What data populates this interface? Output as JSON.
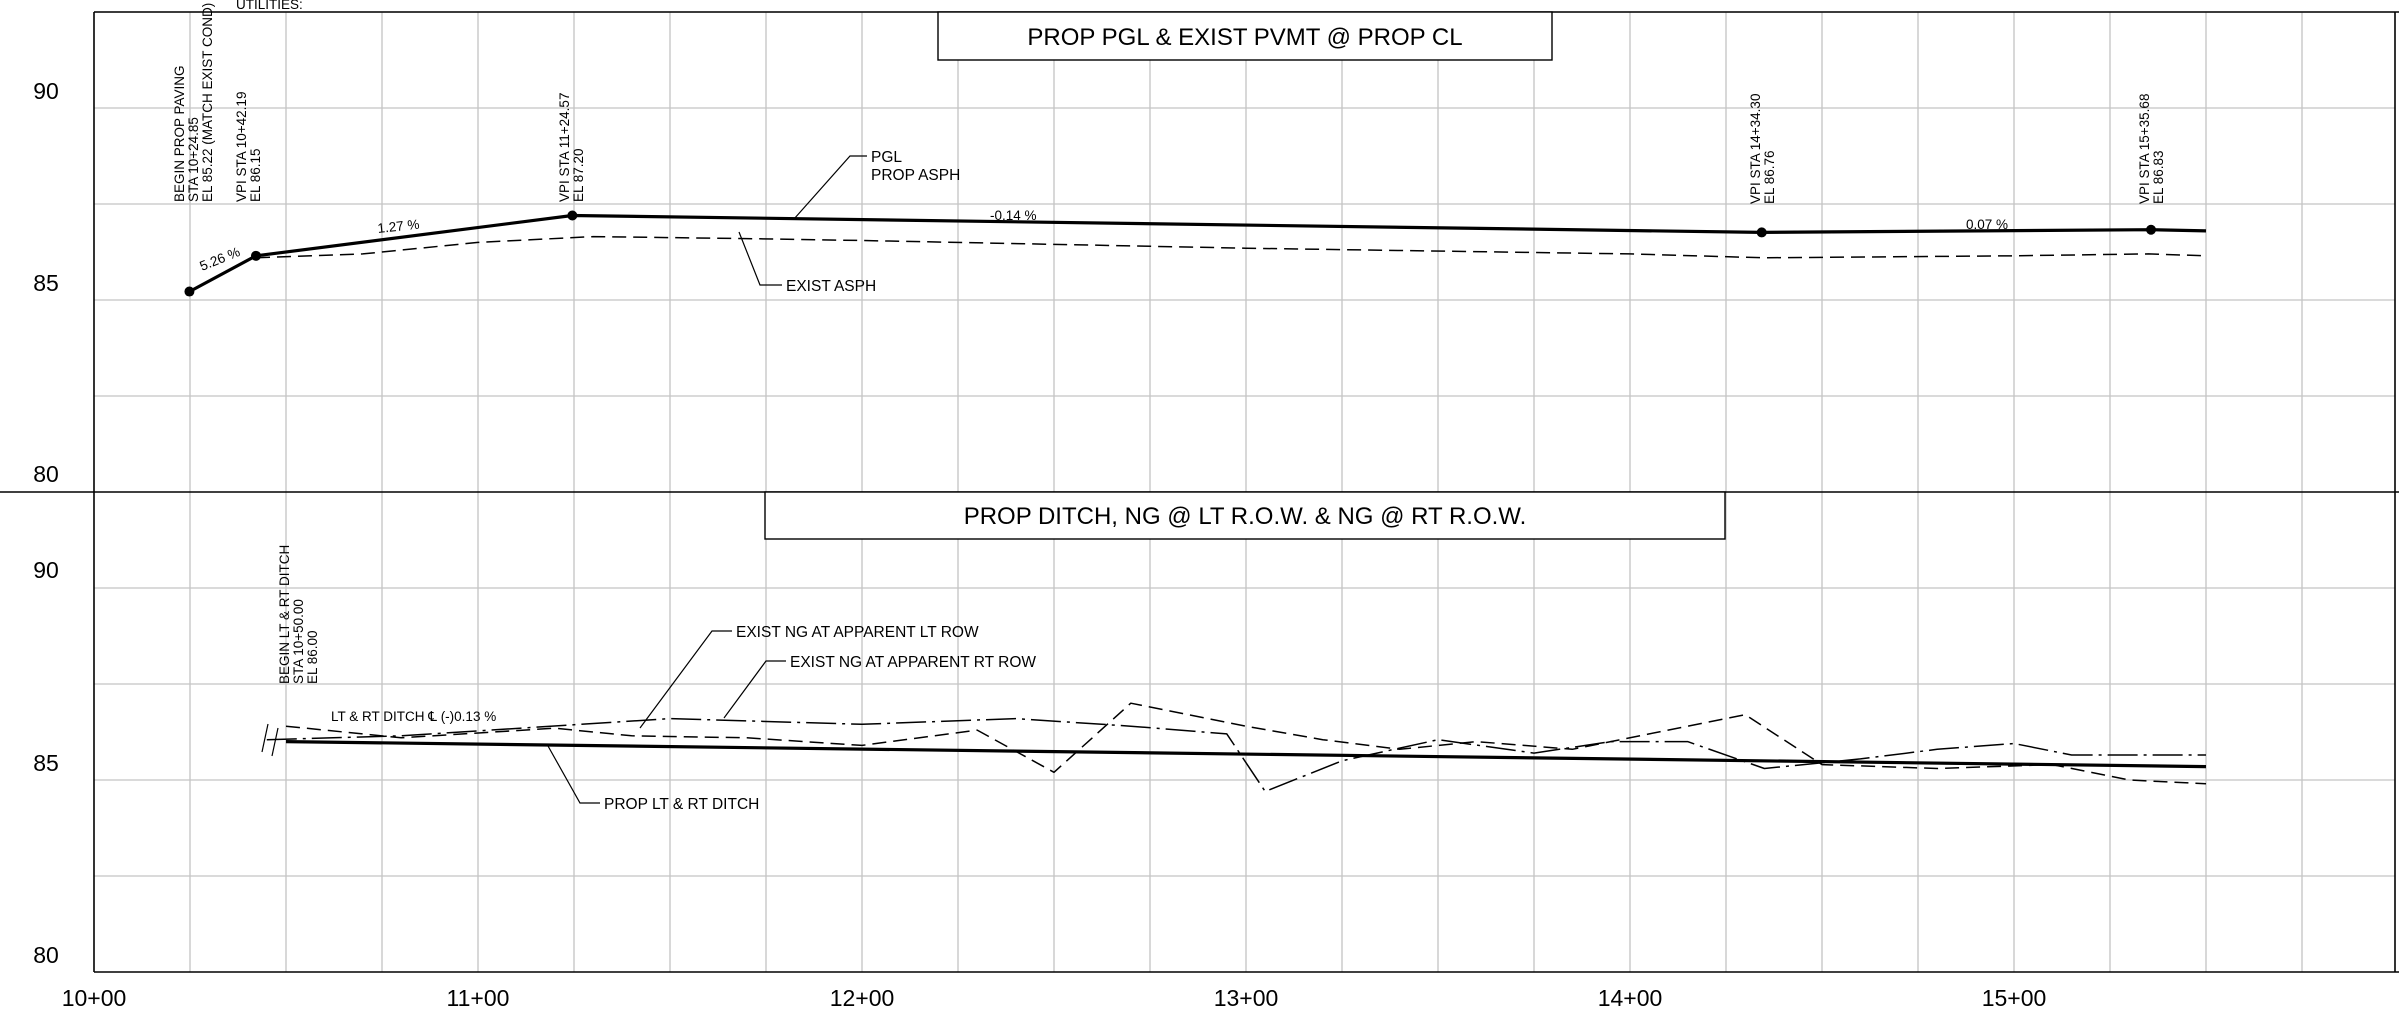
{
  "utility_note": "UTILITIES:",
  "x_axis": {
    "ticks": [
      "10+00",
      "11+00",
      "12+00",
      "13+00",
      "14+00",
      "15+00"
    ]
  },
  "top_panel": {
    "title": "PROP PGL & EXIST PVMT @ PROP CL",
    "y_ticks": [
      "90",
      "85",
      "80"
    ],
    "vpi_labels": [
      {
        "lines": [
          "BEGIN PROP PAVING",
          "STA 10+24.85",
          "EL 85.22 (MATCH EXIST COND)"
        ]
      },
      {
        "lines": [
          "VPI STA 10+42.19",
          "EL 86.15"
        ]
      },
      {
        "lines": [
          "VPI STA 11+24.57",
          "EL 87.20"
        ]
      },
      {
        "lines": [
          "VPI STA 14+34.30",
          "EL 86.76"
        ]
      },
      {
        "lines": [
          "VPI STA 15+35.68",
          "EL 86.83"
        ]
      }
    ],
    "grades": [
      "5.26 %",
      "1.27 %",
      "-0.14 %",
      "0.07 %"
    ],
    "callouts": {
      "pgl": [
        "PGL",
        "PROP ASPH"
      ],
      "exist": "EXIST ASPH"
    }
  },
  "bottom_panel": {
    "title": "PROP DITCH, NG @ LT R.O.W. & NG @ RT R.O.W.",
    "y_ticks": [
      "90",
      "85",
      "80"
    ],
    "begin_label": [
      "BEGIN LT & RT DITCH",
      "STA 10+50.00",
      "EL 86.00"
    ],
    "ditch_grade_label": "LT & RT DITCH ℄ (-)0.13 %",
    "callouts": {
      "lt_row": "EXIST NG AT APPARENT LT ROW",
      "rt_row": "EXIST NG AT APPARENT RT ROW",
      "ditch": "PROP LT & RT DITCH"
    }
  },
  "chart_data": [
    {
      "type": "line",
      "title": "PROP PGL & EXIST PVMT @ PROP CL",
      "xlabel": "",
      "ylabel": "",
      "xlim": [
        "10+00",
        "16+00"
      ],
      "ylim": [
        80,
        92.5
      ],
      "grid": true,
      "x_unit": "station",
      "series": [
        {
          "name": "PGL PROP ASPH",
          "style": "solid-heavy",
          "x": [
            "10+24.85",
            "10+42.19",
            "11+24.57",
            "14+34.30",
            "15+35.68",
            "15+50.00"
          ],
          "y": [
            85.22,
            86.15,
            87.2,
            86.76,
            86.83,
            86.8
          ]
        },
        {
          "name": "EXIST ASPH",
          "style": "dashed",
          "x": [
            "10+42.19",
            "10+70.00",
            "11+00.00",
            "11+30.00",
            "11+70.00",
            "12+00.00",
            "13+00.00",
            "14+00.00",
            "14+35.00",
            "15+00.00",
            "15+35.00",
            "15+50.00"
          ],
          "y": [
            86.1,
            86.2,
            86.5,
            86.65,
            86.6,
            86.55,
            86.35,
            86.2,
            86.1,
            86.15,
            86.2,
            86.15
          ]
        }
      ]
    },
    {
      "type": "line",
      "title": "PROP DITCH, NG @ LT R.O.W. & NG @ RT R.O.W.",
      "xlabel": "",
      "ylabel": "",
      "xlim": [
        "10+00",
        "16+00"
      ],
      "ylim": [
        80,
        92.5
      ],
      "grid": true,
      "x_unit": "station",
      "series": [
        {
          "name": "PROP LT & RT DITCH",
          "style": "solid-heavy",
          "x": [
            "10+50.00",
            "15+50.00"
          ],
          "y": [
            86.0,
            85.35
          ]
        },
        {
          "name": "EXIST NG AT APPARENT LT ROW",
          "style": "dash-dot",
          "x": [
            "10+45.00",
            "10+80.00",
            "11+50.00",
            "12+00.00",
            "12+40.00",
            "12+70.00",
            "12+95.00",
            "13+05.00",
            "13+25.00",
            "13+50.00",
            "13+75.00",
            "13+95.00",
            "14+15.00",
            "14+35.00",
            "14+60.00",
            "14+80.00",
            "15+00.00",
            "15+15.00",
            "15+50.00"
          ],
          "y": [
            86.05,
            86.15,
            86.6,
            86.45,
            86.6,
            86.4,
            86.2,
            84.7,
            85.5,
            86.05,
            85.7,
            86.0,
            86.0,
            85.3,
            85.55,
            85.8,
            85.95,
            85.65,
            85.65
          ]
        },
        {
          "name": "EXIST NG AT APPARENT RT ROW",
          "style": "dashed",
          "x": [
            "10+50.00",
            "10+80.00",
            "11+20.00",
            "11+40.00",
            "11+70.00",
            "12+00.00",
            "12+30.00",
            "12+50.00",
            "12+70.00",
            "13+00.00",
            "13+20.00",
            "13+40.00",
            "13+60.00",
            "13+85.00",
            "14+05.00",
            "14+30.00",
            "14+50.00",
            "14+80.00",
            "15+10.00",
            "15+30.00",
            "15+50.00"
          ],
          "y": [
            86.4,
            86.1,
            86.35,
            86.15,
            86.1,
            85.9,
            86.3,
            85.2,
            87.0,
            86.4,
            86.05,
            85.8,
            86.0,
            85.8,
            86.2,
            86.7,
            85.4,
            85.3,
            85.4,
            85.0,
            84.9
          ]
        }
      ]
    }
  ]
}
